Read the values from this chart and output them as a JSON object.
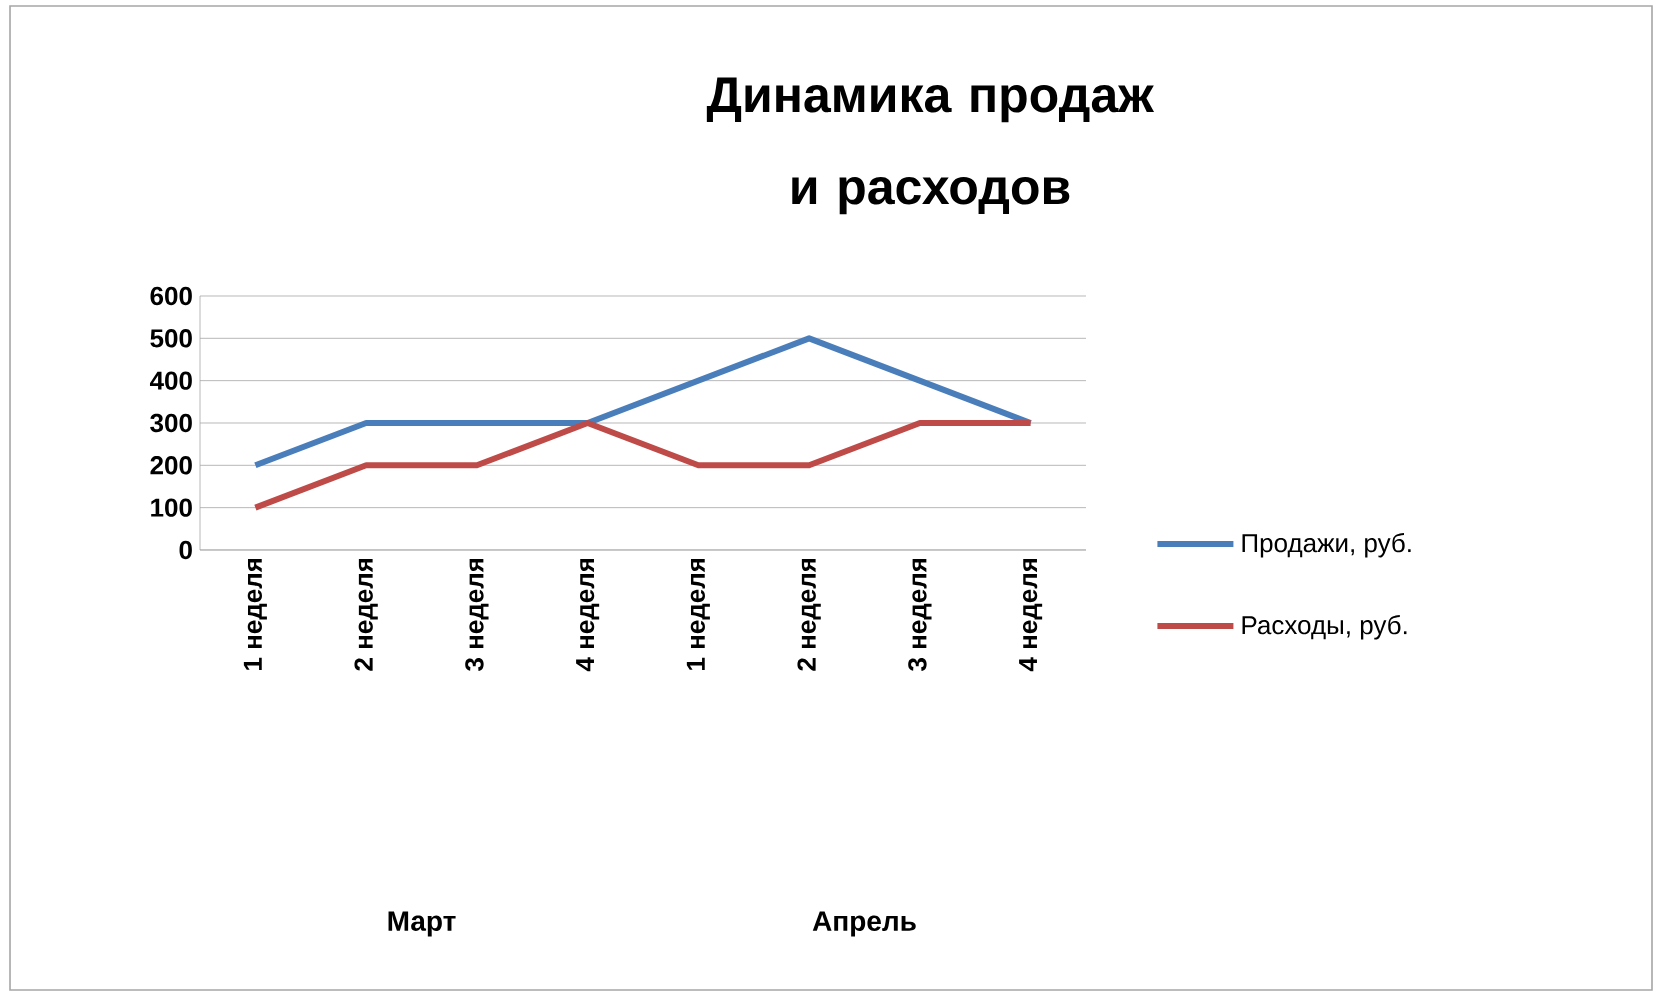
{
  "chart_data": {
    "type": "line",
    "title": "Динамика продаж и расходов",
    "categories": [
      "1 неделя",
      "2 неделя",
      "3 неделя",
      "4 неделя",
      "1 неделя",
      "2 неделя",
      "3 неделя",
      "4 неделя"
    ],
    "series": [
      {
        "name": "Продажи, руб.",
        "color": "#4a7ebb",
        "values": [
          200,
          300,
          300,
          300,
          400,
          500,
          400,
          300
        ]
      },
      {
        "name": "Расходы, руб.",
        "color": "#be4b48",
        "values": [
          100,
          200,
          200,
          300,
          200,
          200,
          300,
          300
        ]
      }
    ],
    "annotations": [
      "Март",
      "Апрель"
    ],
    "ylim": [
      0,
      600
    ],
    "yticks": [
      0,
      100,
      200,
      300,
      400,
      500,
      600
    ],
    "grid": "y",
    "legend": "right",
    "marker": "none",
    "line_style": "solid"
  }
}
